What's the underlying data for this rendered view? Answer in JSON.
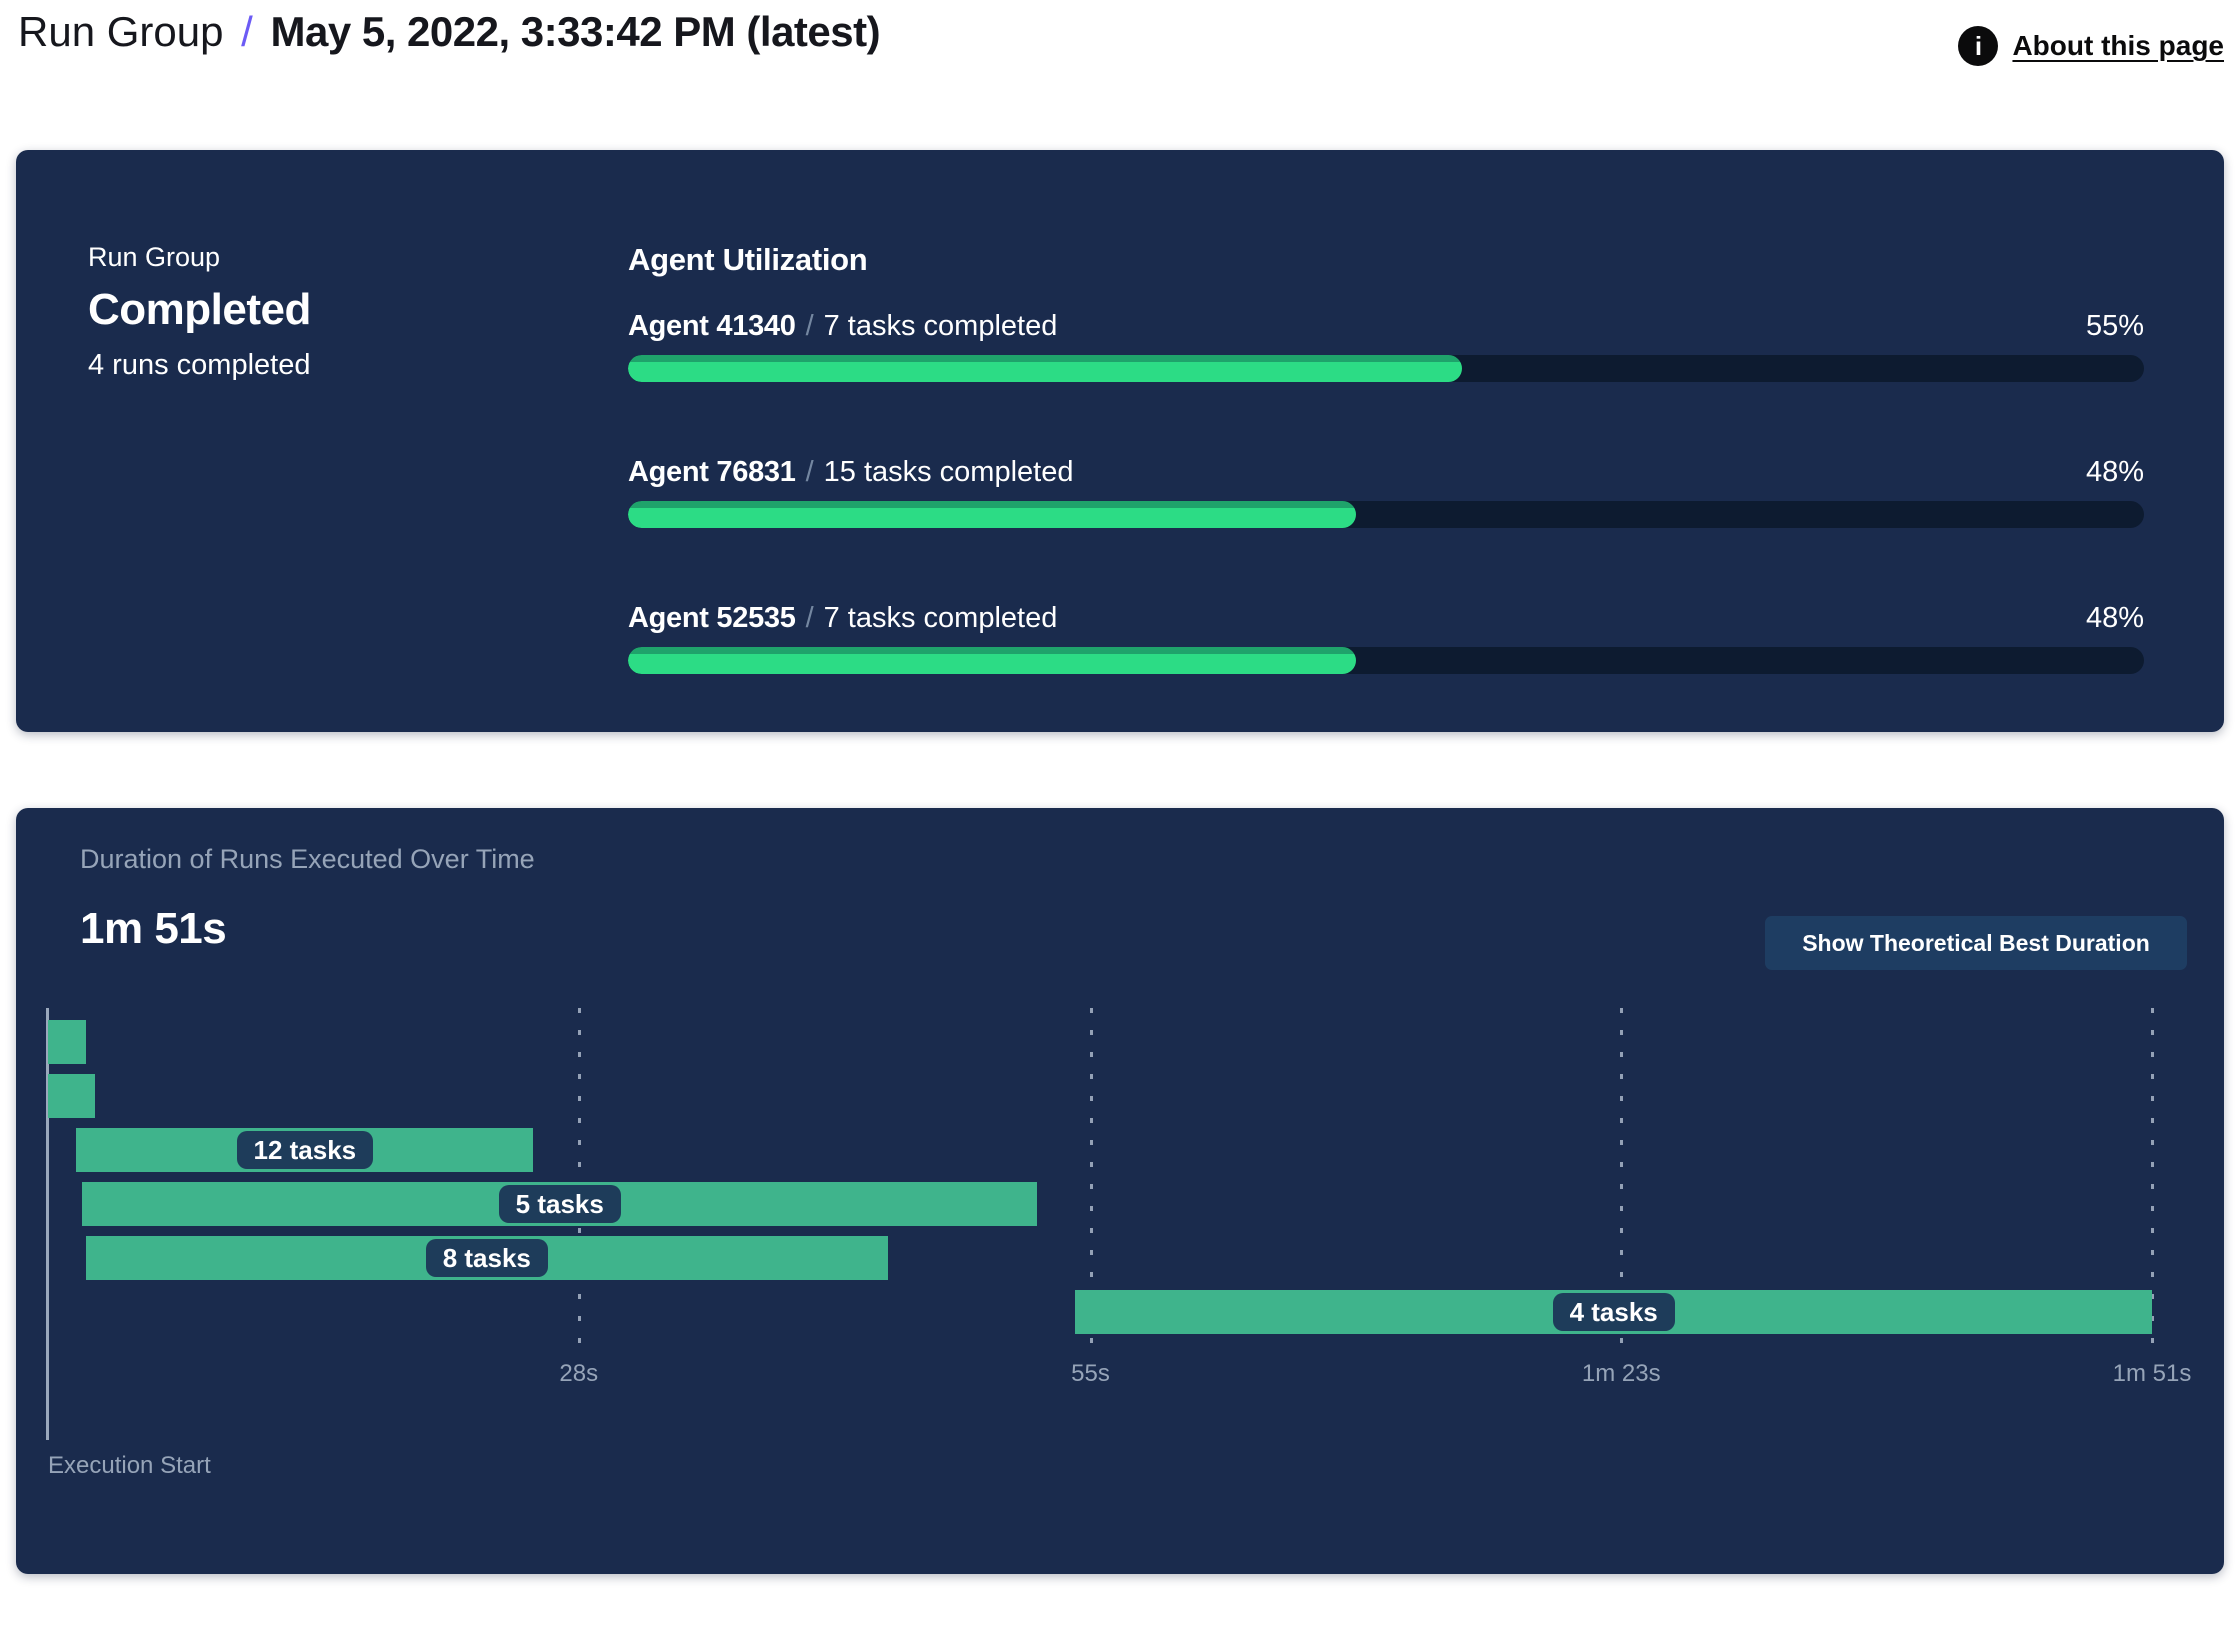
{
  "header": {
    "breadcrumb_root": "Run Group",
    "separator": "/",
    "current_page_title": "May 5, 2022, 3:33:42 PM (latest)",
    "about_link_label": "About this page",
    "info_icon_glyph": "i"
  },
  "run_group_panel": {
    "summary": {
      "label": "Run Group",
      "status": "Completed",
      "detail": "4 runs completed"
    },
    "agent_utilization": {
      "title": "Agent Utilization",
      "separator": "/",
      "agents": [
        {
          "name": "Agent 41340",
          "tasks_completed_label": "7 tasks completed",
          "utilization_percent": 55
        },
        {
          "name": "Agent 76831",
          "tasks_completed_label": "15 tasks completed",
          "utilization_percent": 48
        },
        {
          "name": "Agent 52535",
          "tasks_completed_label": "7 tasks completed",
          "utilization_percent": 48
        }
      ]
    }
  },
  "duration_panel": {
    "title": "Duration of Runs Executed Over Time",
    "total_duration": "1m 51s",
    "show_best_button_label": "Show Theoretical Best Duration",
    "execution_start_label": "Execution Start"
  },
  "chart_data": {
    "type": "bar",
    "subtype": "gantt-timeline",
    "title": "Duration of Runs Executed Over Time",
    "total_duration_label": "1m 51s",
    "x_axis": {
      "range_seconds": [
        0,
        111
      ],
      "origin_label": "Execution Start",
      "ticks": [
        {
          "label": "28s",
          "t": 28
        },
        {
          "label": "55s",
          "t": 55
        },
        {
          "label": "1m 23s",
          "t": 83
        },
        {
          "label": "1m 51s",
          "t": 111
        }
      ],
      "gridlines": "dashed-vertical"
    },
    "bars": [
      {
        "label": "",
        "start_s": 0.0,
        "end_s": 2.0
      },
      {
        "label": "",
        "start_s": 0.0,
        "end_s": 2.5
      },
      {
        "label": "12 tasks",
        "start_s": 1.5,
        "end_s": 25.6
      },
      {
        "label": "5 tasks",
        "start_s": 1.8,
        "end_s": 52.2
      },
      {
        "label": "8 tasks",
        "start_s": 2.0,
        "end_s": 44.3
      },
      {
        "label": "4 tasks",
        "start_s": 54.2,
        "end_s": 111.0
      }
    ],
    "legend": "none"
  },
  "colors": {
    "panel_bg": "#1A2B4D",
    "progress_fill_green": "#2CDC85",
    "progress_fill_shade": "#1FA36B",
    "progress_track": "#0D1B30",
    "gantt_bar_green": "#3FB48C",
    "pill_bg": "#1E3C5A",
    "button_bg": "#1E3D62",
    "muted_text": "#96A4B8",
    "axis_line": "#9AA8BC",
    "breadcrumb_separator_purple": "#6C5BF5",
    "header_text": "#16171d",
    "page_bg": "#ffffff"
  }
}
